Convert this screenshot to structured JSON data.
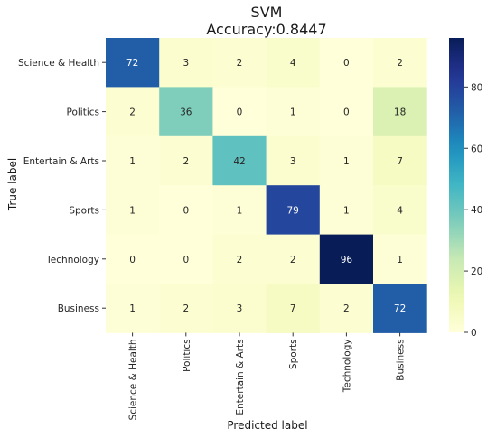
{
  "chart_data": {
    "type": "heatmap",
    "title": "SVM",
    "subtitle": "Accuracy:0.8447",
    "xlabel": "Predicted label",
    "ylabel": "True label",
    "x_categories": [
      "Science & Health",
      "Politics",
      "Entertain & Arts",
      "Sports",
      "Technology",
      "Business"
    ],
    "y_categories": [
      "Science & Health",
      "Politics",
      "Entertain & Arts",
      "Sports",
      "Technology",
      "Business"
    ],
    "matrix": [
      [
        72,
        3,
        2,
        4,
        0,
        2
      ],
      [
        2,
        36,
        0,
        1,
        0,
        18
      ],
      [
        1,
        2,
        42,
        3,
        1,
        7
      ],
      [
        1,
        0,
        1,
        79,
        1,
        4
      ],
      [
        0,
        0,
        2,
        2,
        96,
        1
      ],
      [
        1,
        2,
        3,
        7,
        2,
        72
      ]
    ],
    "colormap": "YlGnBu",
    "vmin": 0,
    "vmax": 96,
    "colorbar_ticks": [
      0,
      20,
      40,
      60,
      80
    ],
    "colorbar_tick_labels": [
      "0",
      "20",
      "40",
      "60",
      "80"
    ],
    "grid": false,
    "legend": "colorbar-right"
  }
}
